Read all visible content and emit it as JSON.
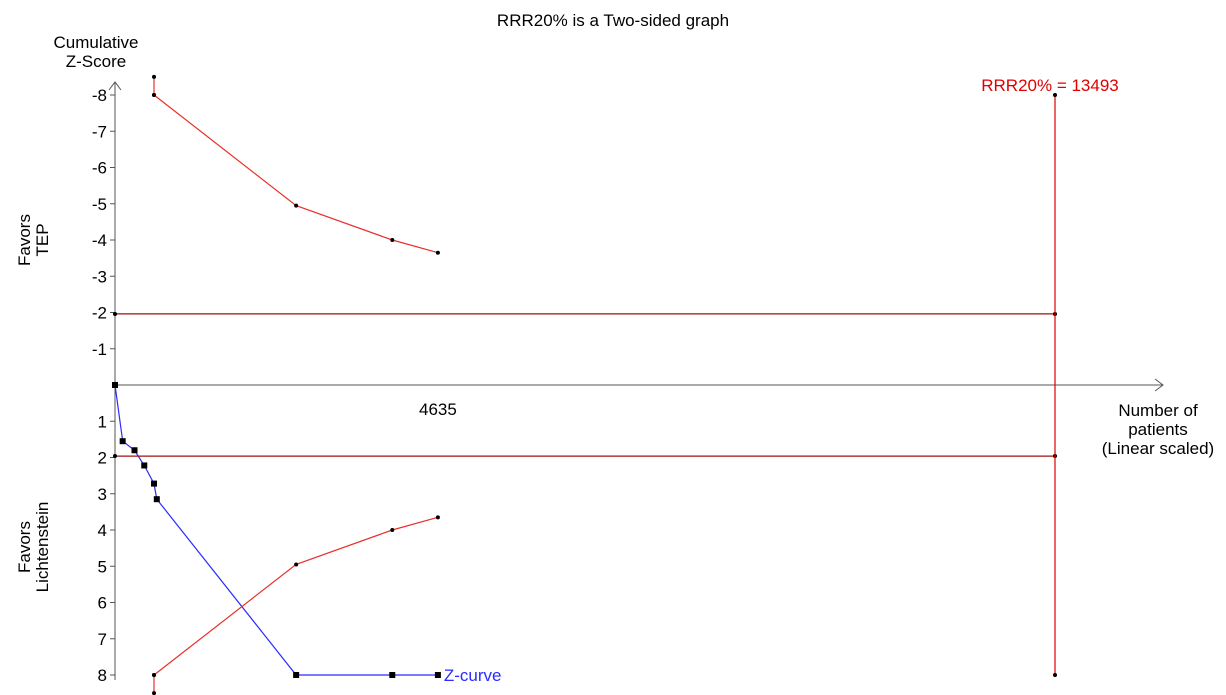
{
  "chart_data": {
    "type": "line",
    "title": "RRR20% is a Two-sided graph",
    "ylabel_lines": [
      "Cumulative",
      "Z-Score"
    ],
    "xlabel_lines": [
      "Number of",
      "patients",
      "(Linear scaled)"
    ],
    "upper_side_lines": [
      "Favors",
      "TEP"
    ],
    "lower_side_lines": [
      "Favors",
      "Lichtenstein"
    ],
    "y_axis": {
      "min": -8,
      "max": 8,
      "upper_ticks": [
        {
          "value": -8,
          "label": "-8"
        },
        {
          "value": -7,
          "label": "-7"
        },
        {
          "value": -6,
          "label": "-6"
        },
        {
          "value": -5,
          "label": "-5"
        },
        {
          "value": -4,
          "label": "-4"
        },
        {
          "value": -3,
          "label": "-3"
        },
        {
          "value": -2,
          "label": "-2"
        },
        {
          "value": -1,
          "label": "-1"
        }
      ],
      "lower_ticks": [
        {
          "value": 1,
          "label": "1"
        },
        {
          "value": 2,
          "label": "2"
        },
        {
          "value": 3,
          "label": "3"
        },
        {
          "value": 4,
          "label": "4"
        },
        {
          "value": 5,
          "label": "5"
        },
        {
          "value": 6,
          "label": "6"
        },
        {
          "value": 7,
          "label": "7"
        },
        {
          "value": 8,
          "label": "8"
        }
      ]
    },
    "x_axis": {
      "min": 0,
      "max": 14500,
      "tick_labels": [
        {
          "value": 4635,
          "label": "4635"
        }
      ]
    },
    "colors": {
      "boundary": "#e8302a",
      "conventional": "#a01010",
      "zcurve": "#2b2bff",
      "axis": "#555555",
      "text": "#000000",
      "ris": "#e00000"
    },
    "series": [
      {
        "name": "Z-curve",
        "role": "zcurve",
        "points": [
          [
            0,
            0
          ],
          [
            110,
            1.55
          ],
          [
            280,
            1.8
          ],
          [
            420,
            2.22
          ],
          [
            560,
            2.72
          ],
          [
            600,
            3.15
          ],
          [
            2600,
            8
          ],
          [
            3980,
            8
          ],
          [
            4635,
            8
          ]
        ]
      },
      {
        "role": "boundary",
        "points": [
          [
            560,
            -8.5
          ],
          [
            560,
            -8
          ]
        ]
      },
      {
        "role": "boundary",
        "points": [
          [
            560,
            -8
          ],
          [
            2600,
            -4.95
          ],
          [
            3980,
            -4
          ],
          [
            4635,
            -3.65
          ]
        ]
      },
      {
        "role": "boundary",
        "points": [
          [
            560,
            8.5
          ],
          [
            560,
            8
          ]
        ]
      },
      {
        "role": "boundary",
        "points": [
          [
            560,
            8
          ],
          [
            2600,
            4.95
          ],
          [
            3980,
            4
          ],
          [
            4635,
            3.65
          ]
        ]
      },
      {
        "role": "conventional",
        "points": [
          [
            0,
            -1.96
          ],
          [
            13493,
            -1.96
          ]
        ]
      },
      {
        "role": "conventional",
        "points": [
          [
            0,
            1.96
          ],
          [
            13493,
            1.96
          ]
        ]
      },
      {
        "role": "ris",
        "points": [
          [
            13493,
            -8
          ],
          [
            13493,
            8
          ]
        ]
      }
    ],
    "ris_label": "RRR20% = 13493",
    "ris_value": 13493,
    "grid": false,
    "legend": "inline at end of Z-curve"
  }
}
